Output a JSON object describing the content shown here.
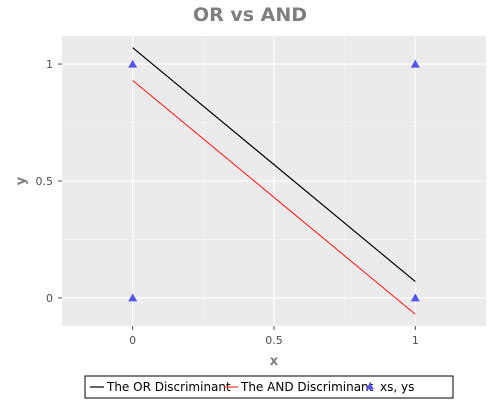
{
  "chart_data": {
    "type": "scatter",
    "title": "OR vs AND",
    "xlabel": "x",
    "ylabel": "y",
    "xlim": [
      -0.25,
      1.25
    ],
    "ylim": [
      -0.12,
      1.12
    ],
    "x_ticks": [
      0,
      0.5,
      1
    ],
    "x_tick_labels": [
      "0",
      "0.5",
      "1"
    ],
    "y_ticks": [
      0,
      0.5,
      1
    ],
    "y_tick_labels": [
      "0",
      "0.5",
      "1"
    ],
    "grid": true,
    "legend_position": "bottom",
    "series": [
      {
        "name": "The OR Discriminant",
        "type": "line",
        "color": "#000000",
        "x": [
          0,
          1
        ],
        "y": [
          1.07,
          0.07
        ]
      },
      {
        "name": "The AND Discriminant",
        "type": "line",
        "color": "#ff3333",
        "x": [
          0,
          1
        ],
        "y": [
          0.93,
          -0.07
        ]
      },
      {
        "name": "xs, ys",
        "type": "scatter",
        "marker": "triangle",
        "color": "#5555ee",
        "x": [
          0,
          0,
          1,
          1
        ],
        "y": [
          0,
          1,
          0,
          1
        ]
      }
    ]
  }
}
